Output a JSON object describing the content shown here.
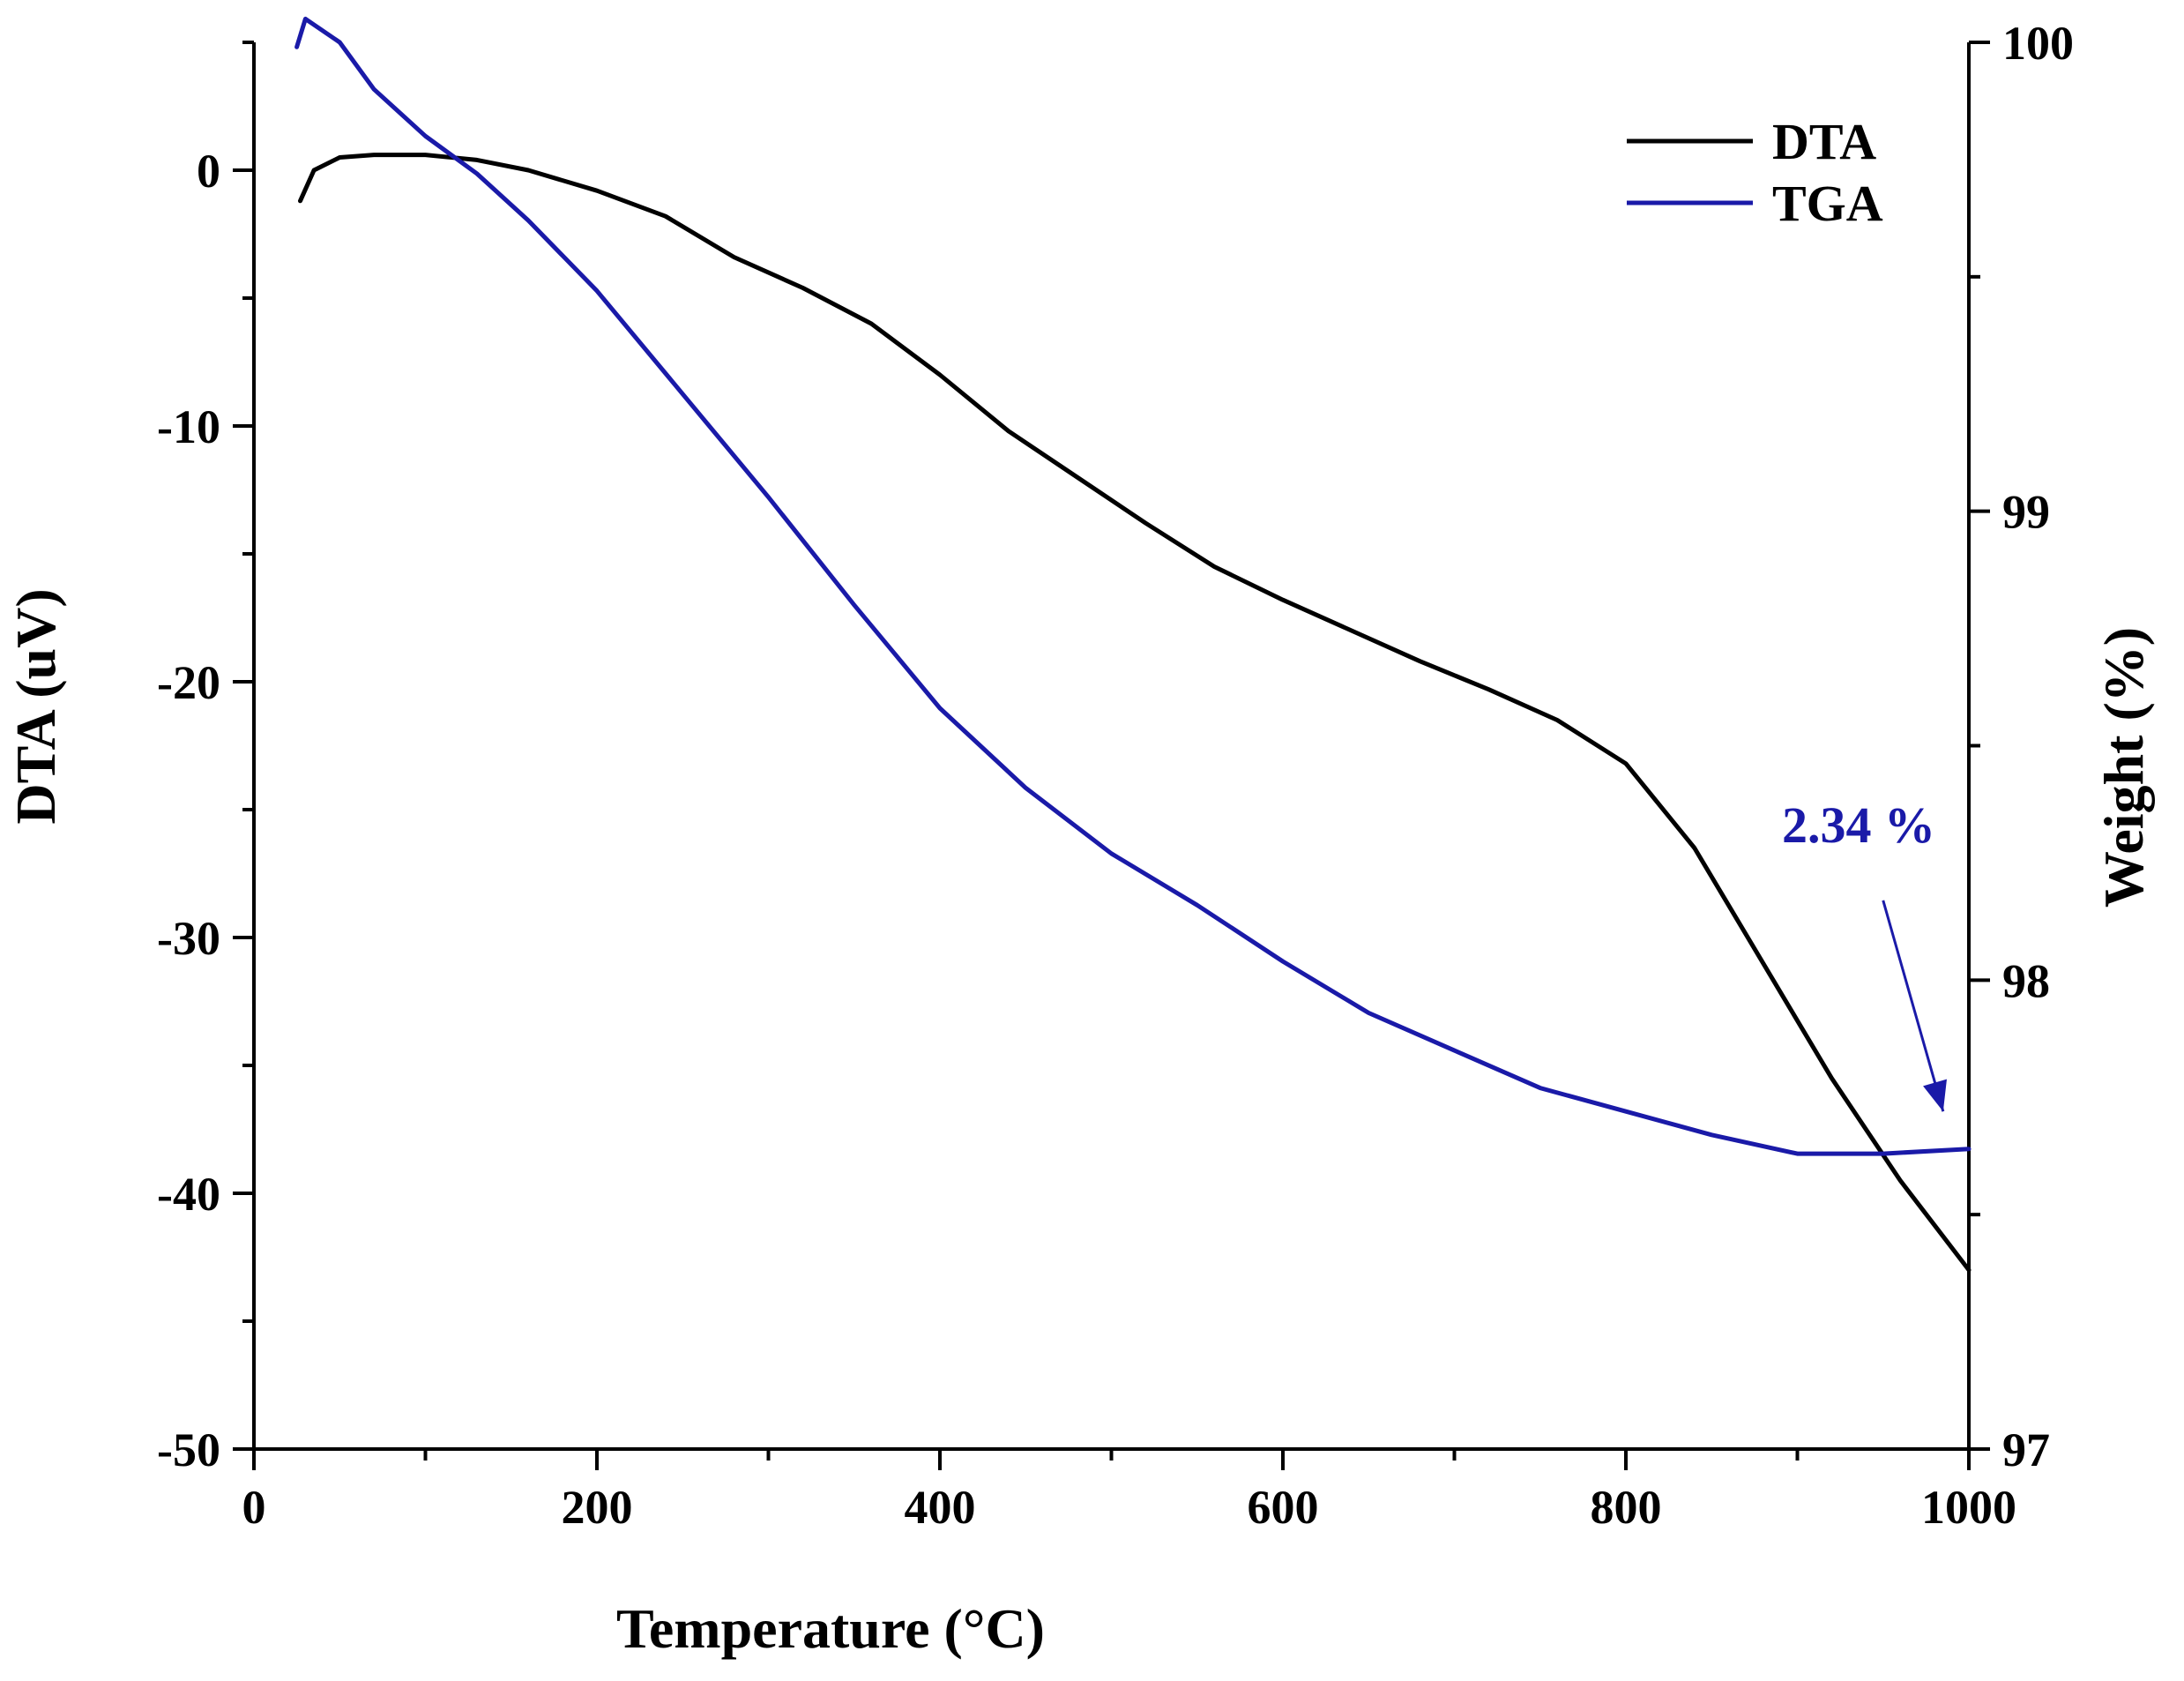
{
  "chart_data": {
    "type": "line",
    "title": "",
    "xlabel": "Temperature (°C)",
    "ylabel_left": "DTA (uV)",
    "ylabel_right": "Weight (%)",
    "xlim": [
      0,
      1000
    ],
    "ylim_left": [
      -50,
      5
    ],
    "ylim_right": [
      97,
      100
    ],
    "x_ticks": [
      0,
      200,
      400,
      600,
      800,
      1000
    ],
    "x_tick_labels": [
      "0",
      "200",
      "400",
      "600",
      "800",
      "1000"
    ],
    "y_left_ticks": [
      0,
      -10,
      -20,
      -30,
      -40,
      -50
    ],
    "y_left_tick_labels": [
      "0",
      "-10",
      "-20",
      "-30",
      "-40",
      "-50"
    ],
    "y_right_ticks": [
      100,
      99,
      98,
      97
    ],
    "y_right_tick_labels": [
      "100",
      "99",
      "98",
      "97"
    ],
    "series": [
      {
        "name": "DTA",
        "axis": "left",
        "color": "#000000",
        "x": [
          27,
          35,
          50,
          70,
          100,
          130,
          160,
          200,
          240,
          280,
          320,
          360,
          400,
          440,
          480,
          520,
          560,
          600,
          640,
          680,
          720,
          760,
          800,
          840,
          880,
          920,
          960,
          1000
        ],
        "y": [
          -1.2,
          0.0,
          0.5,
          0.6,
          0.6,
          0.4,
          0.0,
          -0.8,
          -1.8,
          -3.4,
          -4.6,
          -6.0,
          -8.0,
          -10.2,
          -12.0,
          -13.8,
          -15.5,
          -16.8,
          -18.0,
          -19.2,
          -20.3,
          -21.5,
          -23.2,
          -26.5,
          -31.0,
          -35.5,
          -39.5,
          -43.0
        ]
      },
      {
        "name": "TGA",
        "axis": "right",
        "color": "#1a1aa8",
        "x": [
          25,
          30,
          50,
          70,
          100,
          130,
          160,
          200,
          250,
          300,
          350,
          400,
          450,
          500,
          550,
          600,
          650,
          700,
          750,
          800,
          850,
          900,
          950,
          1000
        ],
        "y": [
          99.99,
          100.05,
          100.0,
          99.9,
          99.8,
          99.72,
          99.62,
          99.47,
          99.25,
          99.03,
          98.8,
          98.58,
          98.41,
          98.27,
          98.16,
          98.04,
          97.93,
          97.85,
          97.77,
          97.72,
          97.67,
          97.63,
          97.63,
          97.64
        ]
      }
    ],
    "legend": {
      "placement": "top-right",
      "entries": [
        "DTA",
        "TGA"
      ]
    },
    "annotation": {
      "text": "2.34 %",
      "color": "#1a1aa8",
      "arrow_target": {
        "x": 985,
        "weight": 97.72
      },
      "arrow_tail": {
        "x": 950,
        "weight": 98.17
      }
    }
  }
}
